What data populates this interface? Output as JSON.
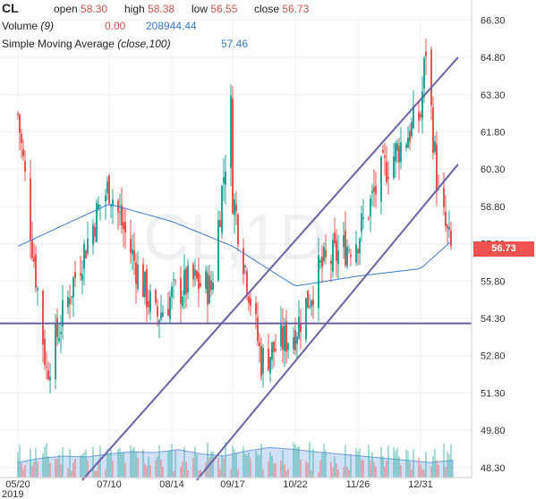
{
  "legend": {
    "symbol": "CL",
    "open_label": "open",
    "open": "58.30",
    "high_label": "high",
    "high": "58.38",
    "low_label": "low",
    "low": "56.55",
    "close_label": "close",
    "close": "56.73",
    "volume_label": "Volume",
    "volume_param": "(9)",
    "volume_value_1": "0.00",
    "volume_value_2": "208944.44",
    "sma_label": "Simple Moving Average",
    "sma_param": "(close,100)",
    "sma_value": "57.46"
  },
  "watermark": "CL,1D",
  "last_price": "56.73",
  "colors": {
    "up": "#26a69a",
    "down": "#ef5350",
    "sma": "#3a7bd5",
    "trend": "#6a62a8",
    "volume_fill": "#a9c7ee"
  },
  "chart_data": {
    "type": "candlestick",
    "y_ticks": [
      "66.30",
      "64.80",
      "63.30",
      "61.80",
      "60.30",
      "58.80",
      "57.30",
      "55.80",
      "54.30",
      "52.80",
      "51.30",
      "49.80",
      "48.30"
    ],
    "x_ticks": [
      "05/20",
      "07/10",
      "08/14",
      "09/17",
      "10/22",
      "11/26",
      "12/31"
    ],
    "x_year": "2019",
    "ylim": [
      47.9,
      66.6
    ],
    "anchors": [
      {
        "date": "05/20",
        "close": 62.5
      },
      {
        "date": "06/05",
        "close": 52.2
      },
      {
        "date": "06/20",
        "close": 55.8
      },
      {
        "date": "07/05",
        "close": 58.9
      },
      {
        "date": "07/10",
        "close": 59.6
      },
      {
        "date": "07/25",
        "close": 56.4
      },
      {
        "date": "08/05",
        "close": 54.3
      },
      {
        "date": "08/14",
        "close": 55.2
      },
      {
        "date": "08/25",
        "close": 55.8
      },
      {
        "date": "09/05",
        "close": 55.5
      },
      {
        "date": "09/16",
        "close": 62.7
      },
      {
        "date": "09/17",
        "close": 59.3
      },
      {
        "date": "10/03",
        "close": 52.6
      },
      {
        "date": "10/22",
        "close": 53.8
      },
      {
        "date": "11/05",
        "close": 56.3
      },
      {
        "date": "11/26",
        "close": 57.6
      },
      {
        "date": "12/10",
        "close": 60.2
      },
      {
        "date": "12/31",
        "close": 62.5
      },
      {
        "date": "01/03",
        "close": 65.2
      },
      {
        "date": "01/10",
        "close": 59.1
      },
      {
        "date": "01/18",
        "close": 56.7
      }
    ],
    "sma_anchors": [
      {
        "date": "05/20",
        "value": 57.2
      },
      {
        "date": "07/10",
        "value": 58.9
      },
      {
        "date": "08/14",
        "value": 58.2
      },
      {
        "date": "09/17",
        "value": 57.2
      },
      {
        "date": "10/22",
        "value": 55.6
      },
      {
        "date": "11/26",
        "value": 56.0
      },
      {
        "date": "12/31",
        "value": 56.3
      },
      {
        "date": "01/18",
        "value": 57.46
      }
    ],
    "horizontal_line": 54.1,
    "trend_lines": [
      {
        "from": {
          "date": "06/25",
          "value": 47.8
        },
        "to": {
          "date": "01/21",
          "value": 64.8
        }
      },
      {
        "from": {
          "date": "08/28",
          "value": 47.8
        },
        "to": {
          "date": "01/21",
          "value": 60.5
        }
      }
    ],
    "volume_relative": [
      0.35,
      0.45,
      0.5,
      0.48,
      0.55,
      0.6,
      0.58,
      0.65,
      0.55,
      0.5,
      0.62,
      0.7,
      0.66,
      0.6,
      0.55,
      0.5,
      0.45,
      0.4,
      0.35,
      0.4
    ]
  }
}
